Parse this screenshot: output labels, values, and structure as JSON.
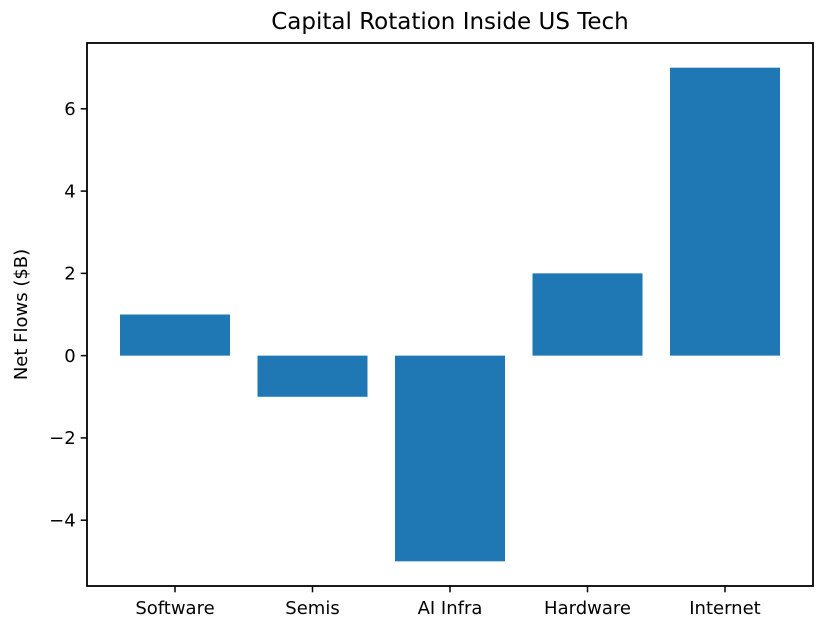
{
  "chart_data": {
    "type": "bar",
    "title": "Capital Rotation Inside US Tech",
    "xlabel": "",
    "ylabel": "Net Flows ($B)",
    "categories": [
      "Software",
      "Semis",
      "AI Infra",
      "Hardware",
      "Internet"
    ],
    "values": [
      1,
      -1,
      -5,
      2,
      7
    ],
    "yticks": [
      -4,
      -2,
      0,
      2,
      4,
      6
    ],
    "ytick_labels": [
      "−4",
      "−2",
      "0",
      "2",
      "4",
      "6"
    ],
    "ylim": [
      -5.6,
      7.6
    ],
    "xlim": [
      -0.64,
      4.64
    ],
    "bar_width": 0.8,
    "bar_color": "#1f77b4",
    "spine_color": "#000000",
    "background_color": "#ffffff",
    "grid": false,
    "legend_position": "none"
  }
}
